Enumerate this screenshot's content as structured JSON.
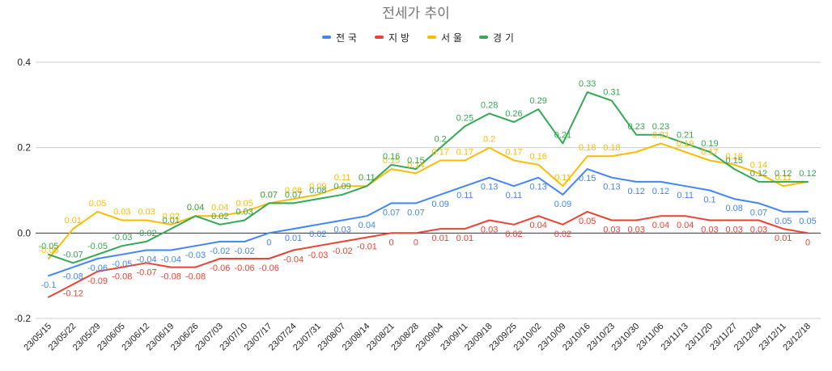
{
  "chart_data": {
    "type": "line",
    "title": "전세가 추이",
    "legend_position": "top",
    "grid": true,
    "xlabel": "",
    "ylabel": "",
    "ylim": [
      -0.2,
      0.4
    ],
    "yticks": [
      "-0.2",
      "0.0",
      "0.2",
      "0.4"
    ],
    "categories": [
      "23/05/15",
      "23/05/22",
      "23/05/29",
      "23/06/05",
      "23/06/12",
      "23/06/19",
      "23/06/26",
      "23/07/03",
      "23/07/10",
      "23/07/17",
      "23/07/24",
      "23/07/31",
      "23/08/07",
      "23/08/14",
      "23/08/21",
      "23/08/28",
      "23/09/04",
      "23/09/11",
      "23/09/18",
      "23/09/25",
      "23/10/02",
      "23/10/09",
      "23/10/16",
      "23/10/23",
      "23/10/30",
      "23/11/06",
      "23/11/13",
      "23/11/20",
      "23/11/27",
      "23/12/04",
      "23/12/11",
      "23/12/18"
    ],
    "series": [
      {
        "name": "전국",
        "color": "#4285f4",
        "values": [
          -0.1,
          -0.08,
          -0.06,
          -0.05,
          -0.04,
          -0.04,
          -0.03,
          -0.02,
          -0.02,
          0,
          0.01,
          0.02,
          0.03,
          0.04,
          0.07,
          0.07,
          0.09,
          0.11,
          0.13,
          0.11,
          0.13,
          0.09,
          0.15,
          0.13,
          0.12,
          0.12,
          0.11,
          0.1,
          0.08,
          0.07,
          0.05,
          0.05
        ]
      },
      {
        "name": "지방",
        "color": "#ea4335",
        "values": [
          -0.15,
          -0.12,
          -0.09,
          -0.08,
          -0.07,
          -0.08,
          -0.08,
          -0.06,
          -0.06,
          -0.06,
          -0.04,
          -0.03,
          -0.02,
          -0.01,
          0,
          0,
          0.01,
          0.01,
          0.03,
          0.02,
          0.04,
          0.02,
          0.05,
          0.03,
          0.03,
          0.04,
          0.04,
          0.03,
          0.03,
          0.03,
          0.01,
          0
        ]
      },
      {
        "name": "서울",
        "color": "#fbbc04",
        "values": [
          -0.06,
          0.01,
          0.05,
          0.03,
          0.03,
          0.02,
          0.04,
          0.04,
          0.05,
          0.07,
          0.08,
          0.09,
          0.11,
          0.11,
          0.15,
          0.14,
          0.17,
          0.17,
          0.2,
          0.17,
          0.16,
          0.11,
          0.18,
          0.18,
          0.19,
          0.21,
          0.19,
          0.17,
          0.16,
          0.14,
          0.11,
          0.12
        ]
      },
      {
        "name": "경기",
        "color": "#34a853",
        "values": [
          -0.05,
          -0.07,
          -0.05,
          -0.03,
          -0.02,
          0.01,
          0.04,
          0.02,
          0.03,
          0.07,
          0.07,
          0.08,
          0.09,
          0.11,
          0.16,
          0.15,
          0.2,
          0.25,
          0.28,
          0.26,
          0.29,
          0.21,
          0.33,
          0.31,
          0.23,
          0.23,
          0.21,
          0.19,
          0.15,
          0.12,
          0.12,
          0.12
        ]
      }
    ],
    "data_labels": {
      "전국": [
        "-0.1",
        "-0.08",
        "-0.06",
        "-0.05",
        "-0.04",
        "-0.04",
        "-0.03",
        "-0.02",
        "-0.02",
        "0",
        "0.01",
        "0.02",
        "0.03",
        "0.04",
        "0.07",
        "0.07",
        "0.09",
        "0.11",
        "0.13",
        "0.11",
        "0.13",
        "0.09",
        "0.15",
        "0.13",
        "0.12",
        "0.12",
        "0.11",
        "0.1",
        "0.08",
        "0.07",
        "0.05",
        "0.05"
      ],
      "지방": [
        "",
        "-0.12",
        "-0.09",
        "-0.08",
        "-0.07",
        "-0.08",
        "-0.08",
        "-0.06",
        "-0.06",
        "-0.06",
        "-0.04",
        "-0.03",
        "-0.02",
        "-0.01",
        "0",
        "0",
        "0.01",
        "0.01",
        "0.03",
        "0.02",
        "0.04",
        "0.02",
        "0.05",
        "0.03",
        "0.03",
        "0.04",
        "0.04",
        "0.03",
        "0.03",
        "0.03",
        "0.01",
        "0"
      ],
      "서울": [
        "-0.06",
        "0.01",
        "0.05",
        "0.03",
        "0.03",
        "0.02",
        "0.04",
        "0.04",
        "0.05",
        "0.07",
        "0.08",
        "0.09",
        "0.11",
        "0.11",
        "0.15",
        "0.14",
        "0.17",
        "0.17",
        "0.2",
        "0.17",
        "0.16",
        "0.11",
        "0.18",
        "0.18",
        "",
        "0.21",
        "0.19",
        "0.17",
        "0.16",
        "0.14",
        "0.11",
        ""
      ],
      "경기": [
        "-0.05",
        "-0.07",
        "-0.05",
        "-0.03",
        "-0.02",
        "0.01",
        "0.04",
        "0.02",
        "0.03",
        "0.07",
        "0.07",
        "0.08",
        "0.09",
        "0.11",
        "0.16",
        "0.15",
        "0.2",
        "0.25",
        "0.28",
        "0.26",
        "0.29",
        "0.21",
        "0.33",
        "0.31",
        "0.23",
        "0.23",
        "0.21",
        "0.19",
        "0.15",
        "0.12",
        "0.12",
        "0.12"
      ]
    },
    "label_placement": {
      "전국": "below",
      "지방": "below",
      "서울": "above",
      "경기": "above"
    }
  }
}
